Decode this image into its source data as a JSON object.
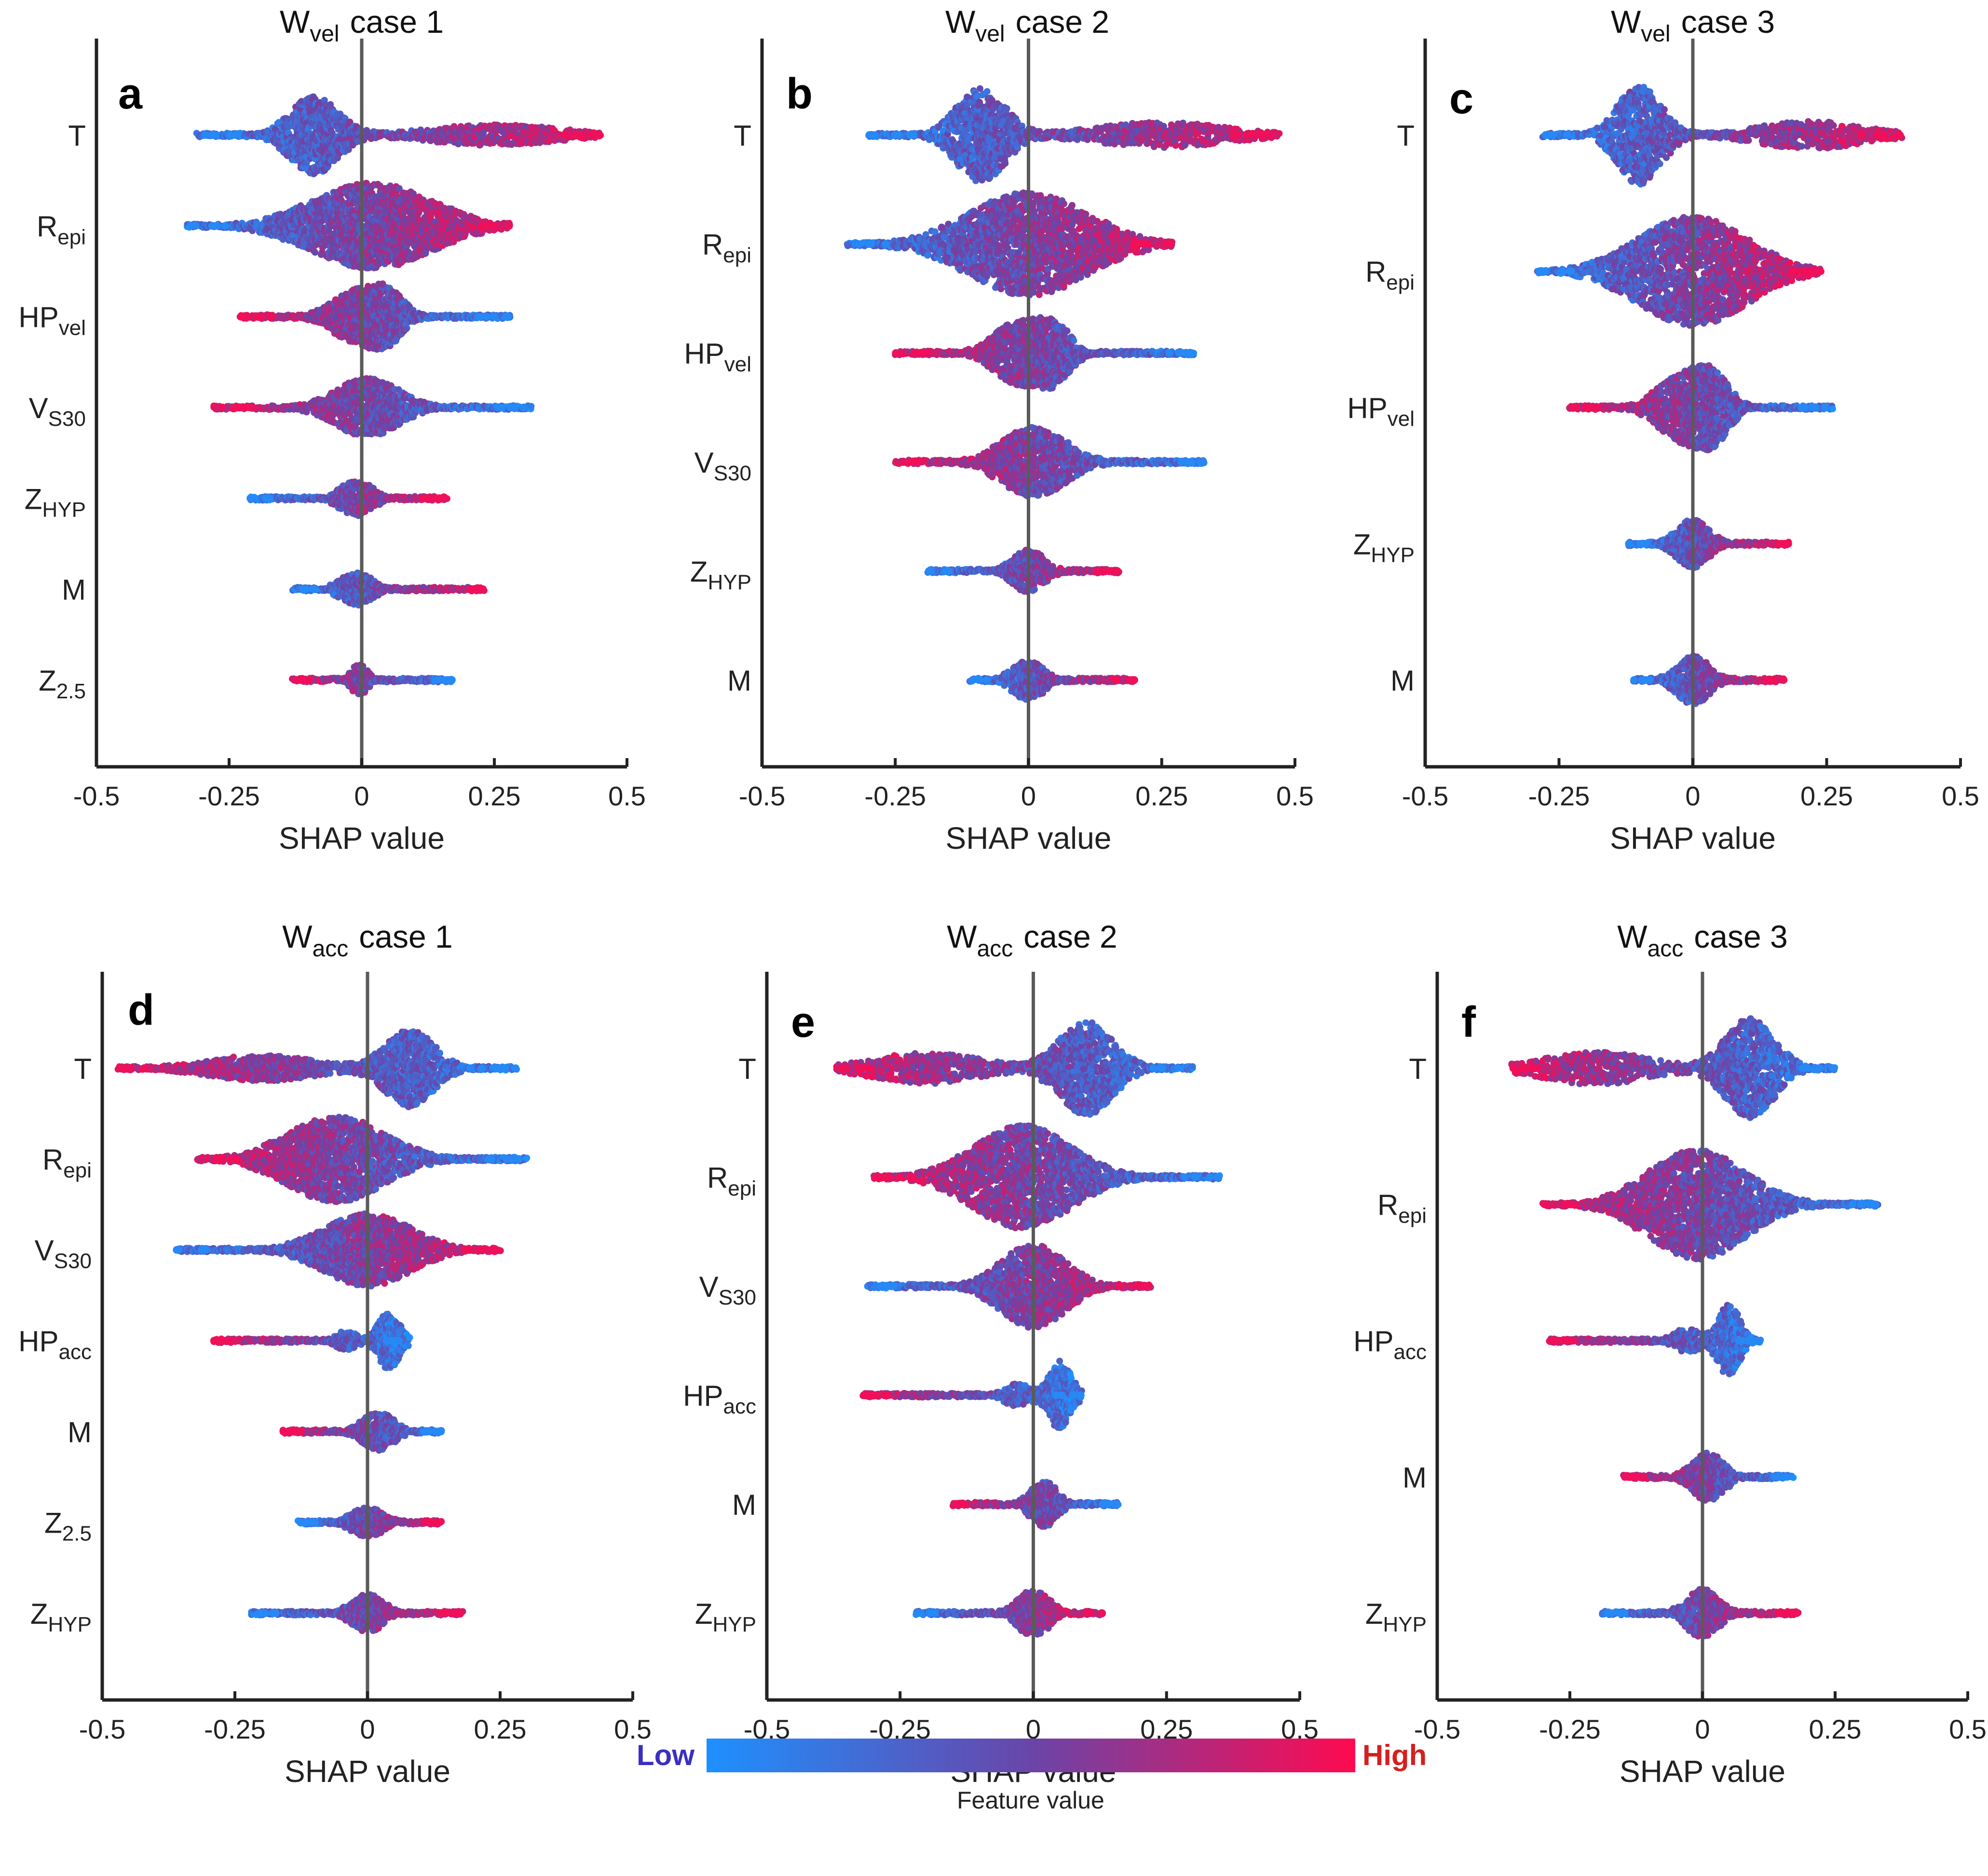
{
  "legend": {
    "low_label": "Low",
    "high_label": "High",
    "caption": "Feature value",
    "low_color": "#1e90ff",
    "mid_color": "#6a45a8",
    "high_color": "#ff0a50",
    "low_text_color": "#3a2fc0",
    "high_text_color": "#d42020"
  },
  "chart_data": [
    {
      "type": "scatter",
      "subtype": "shap-beeswarm",
      "panel": "a",
      "title": {
        "main": "W",
        "sub": "vel",
        "suffix": "case 1"
      },
      "xlabel": "SHAP value",
      "xlim": [
        -0.5,
        0.5
      ],
      "xticks": [
        -0.5,
        -0.25,
        0,
        0.25,
        0.5
      ],
      "xtick_labels": [
        "-0.5",
        "-0.25",
        "0",
        "0.25",
        "0.5"
      ],
      "features": [
        {
          "name": "T",
          "sub": "",
          "min": -0.31,
          "max": 0.45,
          "peaks": [
            [
              -0.09,
              0.9,
              0.045
            ],
            [
              0.25,
              0.25,
              0.12
            ]
          ],
          "spread": 0.95,
          "high_side": "right"
        },
        {
          "name": "R",
          "sub": "epi",
          "min": -0.33,
          "max": 0.28,
          "peaks": [
            [
              0.02,
              1.0,
              0.11
            ]
          ],
          "spread": 0.95,
          "high_side": "right"
        },
        {
          "name": "HP",
          "sub": "vel",
          "min": -0.23,
          "max": 0.28,
          "peaks": [
            [
              -0.01,
              0.75,
              0.045
            ],
            [
              0.05,
              0.6,
              0.03
            ]
          ],
          "spread": 0.75,
          "high_side": "left"
        },
        {
          "name": "V",
          "sub": "S30",
          "min": -0.28,
          "max": 0.32,
          "peaks": [
            [
              0.01,
              0.8,
              0.06
            ]
          ],
          "spread": 0.8,
          "high_side": "left"
        },
        {
          "name": "Z",
          "sub": "HYP",
          "min": -0.21,
          "max": 0.16,
          "peaks": [
            [
              -0.01,
              0.6,
              0.03
            ]
          ],
          "spread": 0.65,
          "high_side": "right"
        },
        {
          "name": "M",
          "sub": "",
          "min": -0.13,
          "max": 0.23,
          "peaks": [
            [
              -0.01,
              0.6,
              0.03
            ]
          ],
          "spread": 0.6,
          "high_side": "right"
        },
        {
          "name": "Z",
          "sub": "2.5",
          "min": -0.13,
          "max": 0.17,
          "peaks": [
            [
              -0.005,
              0.7,
              0.015
            ]
          ],
          "spread": 0.5,
          "high_side": "left"
        }
      ]
    },
    {
      "type": "scatter",
      "subtype": "shap-beeswarm",
      "panel": "b",
      "title": {
        "main": "W",
        "sub": "vel",
        "suffix": "case 2"
      },
      "xlabel": "SHAP value",
      "xlim": [
        -0.5,
        0.5
      ],
      "xticks": [
        -0.5,
        -0.25,
        0,
        0.25,
        0.5
      ],
      "xtick_labels": [
        "-0.5",
        "-0.25",
        "0",
        "0.25",
        "0.5"
      ],
      "features": [
        {
          "name": "T",
          "sub": "",
          "min": -0.3,
          "max": 0.47,
          "peaks": [
            [
              -0.09,
              0.9,
              0.045
            ],
            [
              0.25,
              0.25,
              0.12
            ]
          ],
          "spread": 0.95,
          "high_side": "right"
        },
        {
          "name": "R",
          "sub": "epi",
          "min": -0.34,
          "max": 0.27,
          "peaks": [
            [
              0.0,
              1.0,
              0.11
            ]
          ],
          "spread": 0.95,
          "high_side": "right"
        },
        {
          "name": "HP",
          "sub": "vel",
          "min": -0.25,
          "max": 0.31,
          "peaks": [
            [
              -0.02,
              0.75,
              0.045
            ],
            [
              0.05,
              0.6,
              0.03
            ]
          ],
          "spread": 0.75,
          "high_side": "left"
        },
        {
          "name": "V",
          "sub": "S30",
          "min": -0.25,
          "max": 0.33,
          "peaks": [
            [
              0.01,
              0.8,
              0.06
            ]
          ],
          "spread": 0.8,
          "high_side": "left"
        },
        {
          "name": "Z",
          "sub": "HYP",
          "min": -0.19,
          "max": 0.17,
          "peaks": [
            [
              0.0,
              0.6,
              0.03
            ]
          ],
          "spread": 0.65,
          "high_side": "right"
        },
        {
          "name": "M",
          "sub": "",
          "min": -0.11,
          "max": 0.2,
          "peaks": [
            [
              0.0,
              0.6,
              0.03
            ]
          ],
          "spread": 0.6,
          "high_side": "right"
        }
      ]
    },
    {
      "type": "scatter",
      "subtype": "shap-beeswarm",
      "panel": "c",
      "title": {
        "main": "W",
        "sub": "vel",
        "suffix": "case 3"
      },
      "xlabel": "SHAP value",
      "xlim": [
        -0.5,
        0.5
      ],
      "xticks": [
        -0.5,
        -0.25,
        0,
        0.25,
        0.5
      ],
      "xtick_labels": [
        "-0.5",
        "-0.25",
        "0",
        "0.25",
        "0.5"
      ],
      "features": [
        {
          "name": "T",
          "sub": "",
          "min": -0.28,
          "max": 0.39,
          "peaks": [
            [
              -0.1,
              0.9,
              0.04
            ],
            [
              0.22,
              0.25,
              0.1
            ]
          ],
          "spread": 0.95,
          "high_side": "right"
        },
        {
          "name": "R",
          "sub": "epi",
          "min": -0.29,
          "max": 0.24,
          "peaks": [
            [
              0.0,
              1.0,
              0.1
            ]
          ],
          "spread": 0.95,
          "high_side": "right"
        },
        {
          "name": "HP",
          "sub": "vel",
          "min": -0.23,
          "max": 0.26,
          "peaks": [
            [
              -0.02,
              0.75,
              0.045
            ],
            [
              0.04,
              0.6,
              0.03
            ]
          ],
          "spread": 0.75,
          "high_side": "left"
        },
        {
          "name": "Z",
          "sub": "HYP",
          "min": -0.12,
          "max": 0.18,
          "peaks": [
            [
              0.0,
              0.7,
              0.03
            ]
          ],
          "spread": 0.6,
          "high_side": "right"
        },
        {
          "name": "M",
          "sub": "",
          "min": -0.11,
          "max": 0.17,
          "peaks": [
            [
              0.0,
              0.7,
              0.03
            ]
          ],
          "spread": 0.6,
          "high_side": "right"
        }
      ]
    },
    {
      "type": "scatter",
      "subtype": "shap-beeswarm",
      "panel": "d",
      "title": {
        "main": "W",
        "sub": "acc",
        "suffix": "case 1"
      },
      "xlabel": "SHAP value",
      "xlim": [
        -0.5,
        0.5
      ],
      "xticks": [
        -0.5,
        -0.25,
        0,
        0.25,
        0.5
      ],
      "xtick_labels": [
        "-0.5",
        "-0.25",
        "0",
        "0.25",
        "0.5"
      ],
      "features": [
        {
          "name": "T",
          "sub": "",
          "min": -0.47,
          "max": 0.28,
          "peaks": [
            [
              0.08,
              0.9,
              0.045
            ],
            [
              -0.2,
              0.3,
              0.1
            ]
          ],
          "spread": 0.95,
          "high_side": "left"
        },
        {
          "name": "R",
          "sub": "epi",
          "min": -0.32,
          "max": 0.3,
          "peaks": [
            [
              -0.06,
              1.0,
              0.09
            ]
          ],
          "spread": 0.95,
          "high_side": "left"
        },
        {
          "name": "V",
          "sub": "S30",
          "min": -0.36,
          "max": 0.25,
          "peaks": [
            [
              0.0,
              0.9,
              0.08
            ]
          ],
          "spread": 0.9,
          "high_side": "right"
        },
        {
          "name": "HP",
          "sub": "acc",
          "min": -0.29,
          "max": 0.08,
          "peaks": [
            [
              0.04,
              0.9,
              0.02
            ],
            [
              -0.04,
              0.3,
              0.02
            ]
          ],
          "spread": 0.7,
          "high_side": "left"
        },
        {
          "name": "M",
          "sub": "",
          "min": -0.16,
          "max": 0.14,
          "peaks": [
            [
              0.02,
              0.7,
              0.03
            ]
          ],
          "spread": 0.6,
          "high_side": "left"
        },
        {
          "name": "Z",
          "sub": "2.5",
          "min": -0.13,
          "max": 0.14,
          "peaks": [
            [
              0.0,
              0.6,
              0.03
            ]
          ],
          "spread": 0.55,
          "high_side": "right"
        },
        {
          "name": "Z",
          "sub": "HYP",
          "min": -0.22,
          "max": 0.18,
          "peaks": [
            [
              0.0,
              0.7,
              0.03
            ]
          ],
          "spread": 0.6,
          "high_side": "right"
        }
      ]
    },
    {
      "type": "scatter",
      "subtype": "shap-beeswarm",
      "panel": "e",
      "title": {
        "main": "W",
        "sub": "acc",
        "suffix": "case 2"
      },
      "xlabel": "SHAP value",
      "xlim": [
        -0.5,
        0.5
      ],
      "xticks": [
        -0.5,
        -0.25,
        0,
        0.25,
        0.5
      ],
      "xtick_labels": [
        "-0.5",
        "-0.25",
        "0",
        "0.25",
        "0.5"
      ],
      "features": [
        {
          "name": "T",
          "sub": "",
          "min": -0.37,
          "max": 0.3,
          "peaks": [
            [
              0.1,
              0.9,
              0.05
            ],
            [
              -0.2,
              0.3,
              0.1
            ]
          ],
          "spread": 0.95,
          "high_side": "left"
        },
        {
          "name": "R",
          "sub": "epi",
          "min": -0.3,
          "max": 0.35,
          "peaks": [
            [
              -0.02,
              1.0,
              0.09
            ]
          ],
          "spread": 0.95,
          "high_side": "left"
        },
        {
          "name": "V",
          "sub": "S30",
          "min": -0.31,
          "max": 0.22,
          "peaks": [
            [
              0.0,
              0.9,
              0.06
            ]
          ],
          "spread": 0.85,
          "high_side": "right"
        },
        {
          "name": "HP",
          "sub": "acc",
          "min": -0.32,
          "max": 0.09,
          "peaks": [
            [
              0.05,
              0.9,
              0.02
            ],
            [
              -0.03,
              0.3,
              0.025
            ]
          ],
          "spread": 0.7,
          "high_side": "left"
        },
        {
          "name": "M",
          "sub": "",
          "min": -0.15,
          "max": 0.16,
          "peaks": [
            [
              0.02,
              0.7,
              0.025
            ]
          ],
          "spread": 0.6,
          "high_side": "left"
        },
        {
          "name": "Z",
          "sub": "HYP",
          "min": -0.22,
          "max": 0.13,
          "peaks": [
            [
              0.0,
              0.7,
              0.03
            ]
          ],
          "spread": 0.6,
          "high_side": "right"
        }
      ]
    },
    {
      "type": "scatter",
      "subtype": "shap-beeswarm",
      "panel": "f",
      "title": {
        "main": "W",
        "sub": "acc",
        "suffix": "case 3"
      },
      "xlabel": "SHAP value",
      "xlim": [
        -0.5,
        0.5
      ],
      "xticks": [
        -0.5,
        -0.25,
        0,
        0.25,
        0.5
      ],
      "xtick_labels": [
        "-0.5",
        "-0.25",
        "0",
        "0.25",
        "0.5"
      ],
      "features": [
        {
          "name": "T",
          "sub": "",
          "min": -0.36,
          "max": 0.25,
          "peaks": [
            [
              0.09,
              0.9,
              0.045
            ],
            [
              -0.2,
              0.3,
              0.1
            ]
          ],
          "spread": 0.95,
          "high_side": "left"
        },
        {
          "name": "R",
          "sub": "epi",
          "min": -0.3,
          "max": 0.33,
          "peaks": [
            [
              -0.01,
              1.0,
              0.09
            ]
          ],
          "spread": 0.95,
          "high_side": "left"
        },
        {
          "name": "HP",
          "sub": "acc",
          "min": -0.29,
          "max": 0.11,
          "peaks": [
            [
              0.05,
              0.9,
              0.02
            ],
            [
              -0.03,
              0.3,
              0.025
            ]
          ],
          "spread": 0.7,
          "high_side": "left"
        },
        {
          "name": "M",
          "sub": "",
          "min": -0.15,
          "max": 0.17,
          "peaks": [
            [
              0.01,
              0.7,
              0.03
            ]
          ],
          "spread": 0.6,
          "high_side": "left"
        },
        {
          "name": "Z",
          "sub": "HYP",
          "min": -0.19,
          "max": 0.18,
          "peaks": [
            [
              0.0,
              0.7,
              0.03
            ]
          ],
          "spread": 0.6,
          "high_side": "right"
        }
      ]
    }
  ]
}
